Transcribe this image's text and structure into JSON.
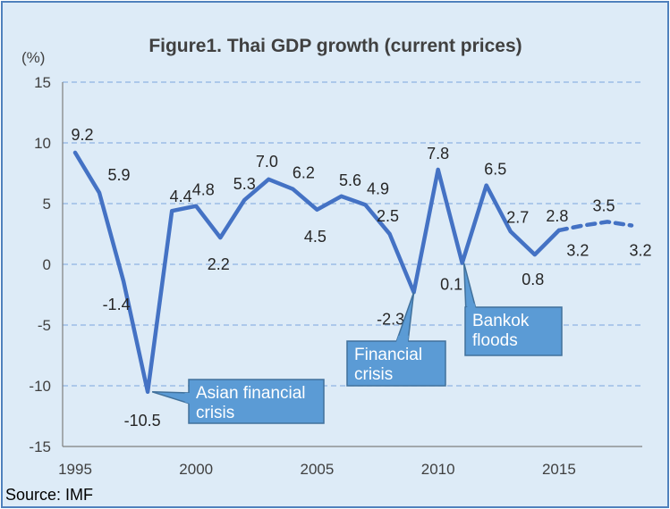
{
  "chart_data": {
    "type": "line",
    "title": "Figure1. Thai GDP growth (current prices)",
    "unit_label": "(%)",
    "ylim": [
      -15,
      15
    ],
    "yticks": [
      15,
      10,
      5,
      0,
      -5,
      -10,
      -15
    ],
    "xlim": [
      1995,
      2018
    ],
    "xticks": [
      1995,
      2000,
      2005,
      2010,
      2015
    ],
    "grid": true,
    "series": [
      {
        "x": [
          1995,
          1996,
          1997,
          1998,
          1999,
          2000,
          2001,
          2002,
          2003,
          2004,
          2005,
          2006,
          2007,
          2008,
          2009,
          2010,
          2011,
          2012,
          2013,
          2014,
          2015
        ],
        "values": [
          9.2,
          5.9,
          -1.4,
          -10.5,
          4.4,
          4.8,
          2.2,
          5.3,
          7.0,
          6.2,
          4.5,
          5.6,
          4.9,
          2.5,
          -2.3,
          7.8,
          0.1,
          6.5,
          2.7,
          0.8,
          2.8
        ],
        "labels": [
          "9.2",
          "5.9",
          "-1.4",
          "-10.5",
          "4.4",
          "4.8",
          "2.2",
          "5.3",
          "7.0",
          "6.2",
          "4.5",
          "5.6",
          "4.9",
          "2.5",
          "-2.3",
          "7.8",
          "0.1",
          "6.5",
          "2.7",
          "0.8",
          "2.8"
        ],
        "style": "solid",
        "color": "#4472c4"
      },
      {
        "x": [
          2015,
          2016,
          2017,
          2018
        ],
        "values": [
          2.8,
          3.2,
          3.5,
          3.2
        ],
        "labels": [
          "",
          "3.2",
          "3.5",
          "3.2"
        ],
        "style": "dashed",
        "color": "#4472c4"
      }
    ],
    "annotations": [
      {
        "text": [
          "Asian financial",
          "crisis"
        ],
        "x": 1998,
        "y": -10.5
      },
      {
        "text": [
          "Financial",
          "crisis"
        ],
        "x": 2009,
        "y": -2.3
      },
      {
        "text": [
          "Bankok",
          "floods"
        ],
        "x": 2011,
        "y": 0.1
      }
    ],
    "source": "Source: IMF"
  },
  "colors": {
    "background": "#ddebf7",
    "border": "#4f81bd",
    "line": "#4472c4",
    "callout_fill": "#5b9bd5",
    "callout_border": "#41719c",
    "grid": "#8eb4e3"
  }
}
